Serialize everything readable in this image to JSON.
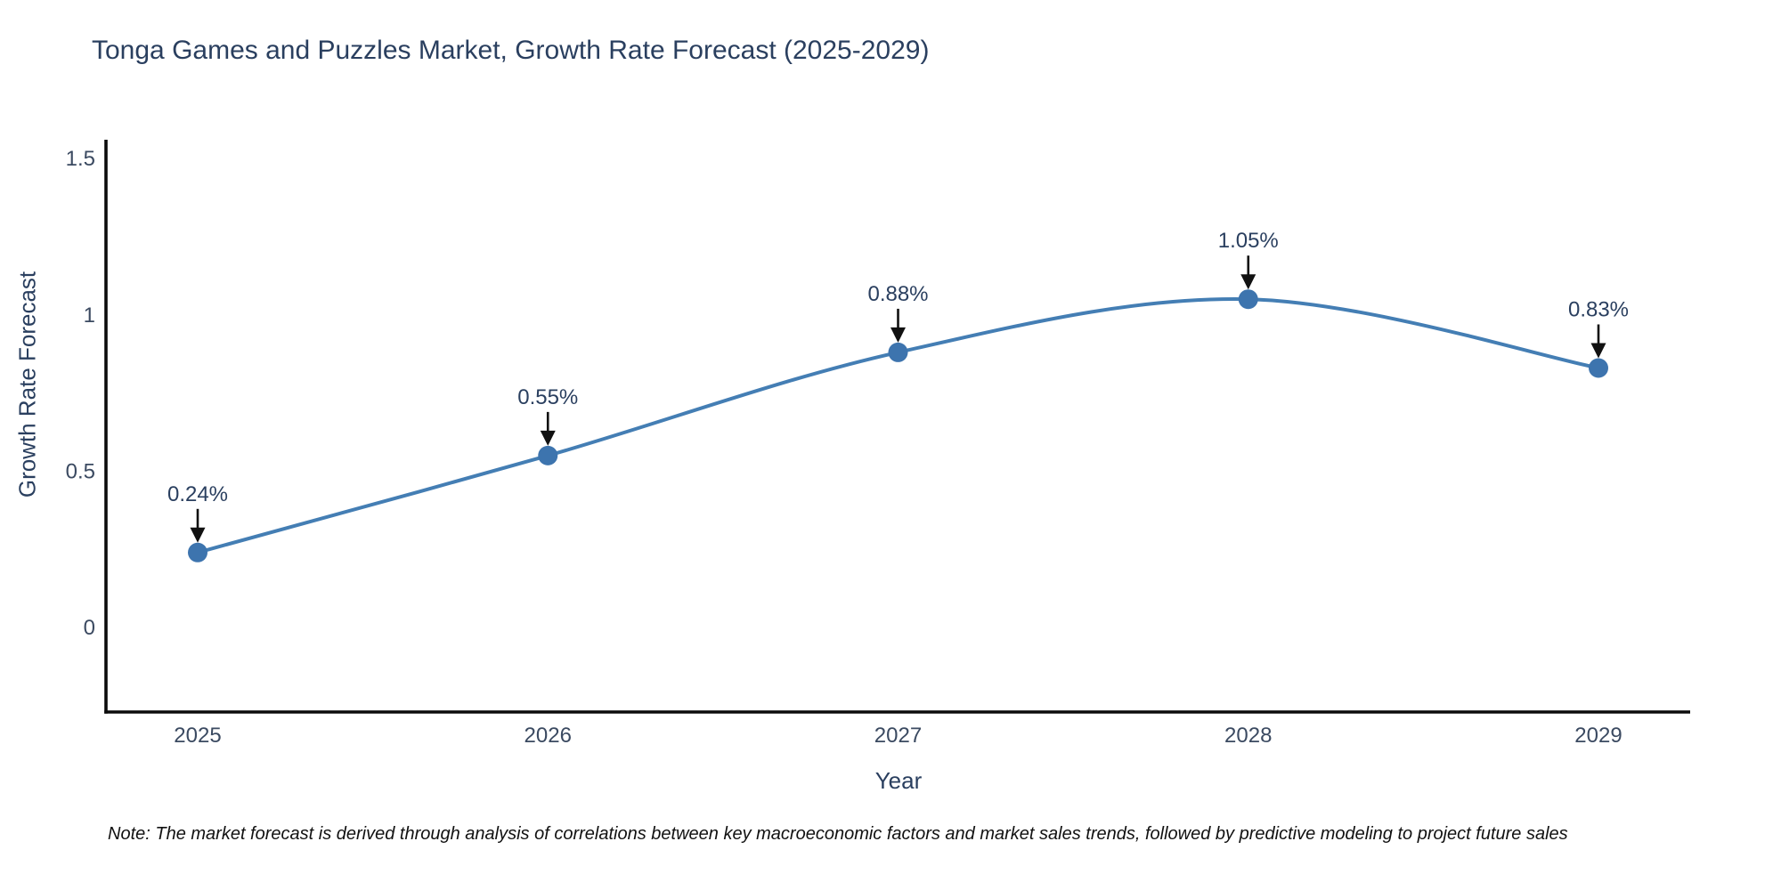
{
  "header": {
    "title": "Tonga Games and Puzzles Market, Growth Rate Forecast (2025-2029)"
  },
  "chart_data": {
    "type": "line",
    "title": "Tonga Games and Puzzles Market, Growth Rate Forecast (2025-2029)",
    "categories": [
      "2025",
      "2026",
      "2027",
      "2028",
      "2029"
    ],
    "values": [
      0.24,
      0.55,
      0.88,
      1.05,
      0.83
    ],
    "point_labels": [
      "0.24%",
      "0.55%",
      "0.88%",
      "1.05%",
      "0.83%"
    ],
    "xlabel": "Year",
    "ylabel": "Growth Rate Forecast",
    "yticks": {
      "values": [
        0,
        0.5,
        1,
        1.5
      ],
      "labels": [
        "0",
        "0.5",
        "1",
        "1.5"
      ]
    },
    "ylim": [
      -0.27,
      1.56
    ],
    "grid": false,
    "legend": "none",
    "line_shape": "spline",
    "marker": "circle",
    "annotation_arrows": true,
    "colors": {
      "line": "#447eb4",
      "marker": "#3d74ae",
      "axis": "#0b0b0b",
      "tick_text": "#3b4a61",
      "annotation_text": "#2a3f5f",
      "annotation_arrow": "#111111",
      "title_text": "#2a3f5f"
    }
  },
  "footnote": {
    "text": "Note: The market forecast is derived through analysis of correlations between key macroeconomic factors and market sales trends, followed by predictive modeling to project future sales"
  }
}
